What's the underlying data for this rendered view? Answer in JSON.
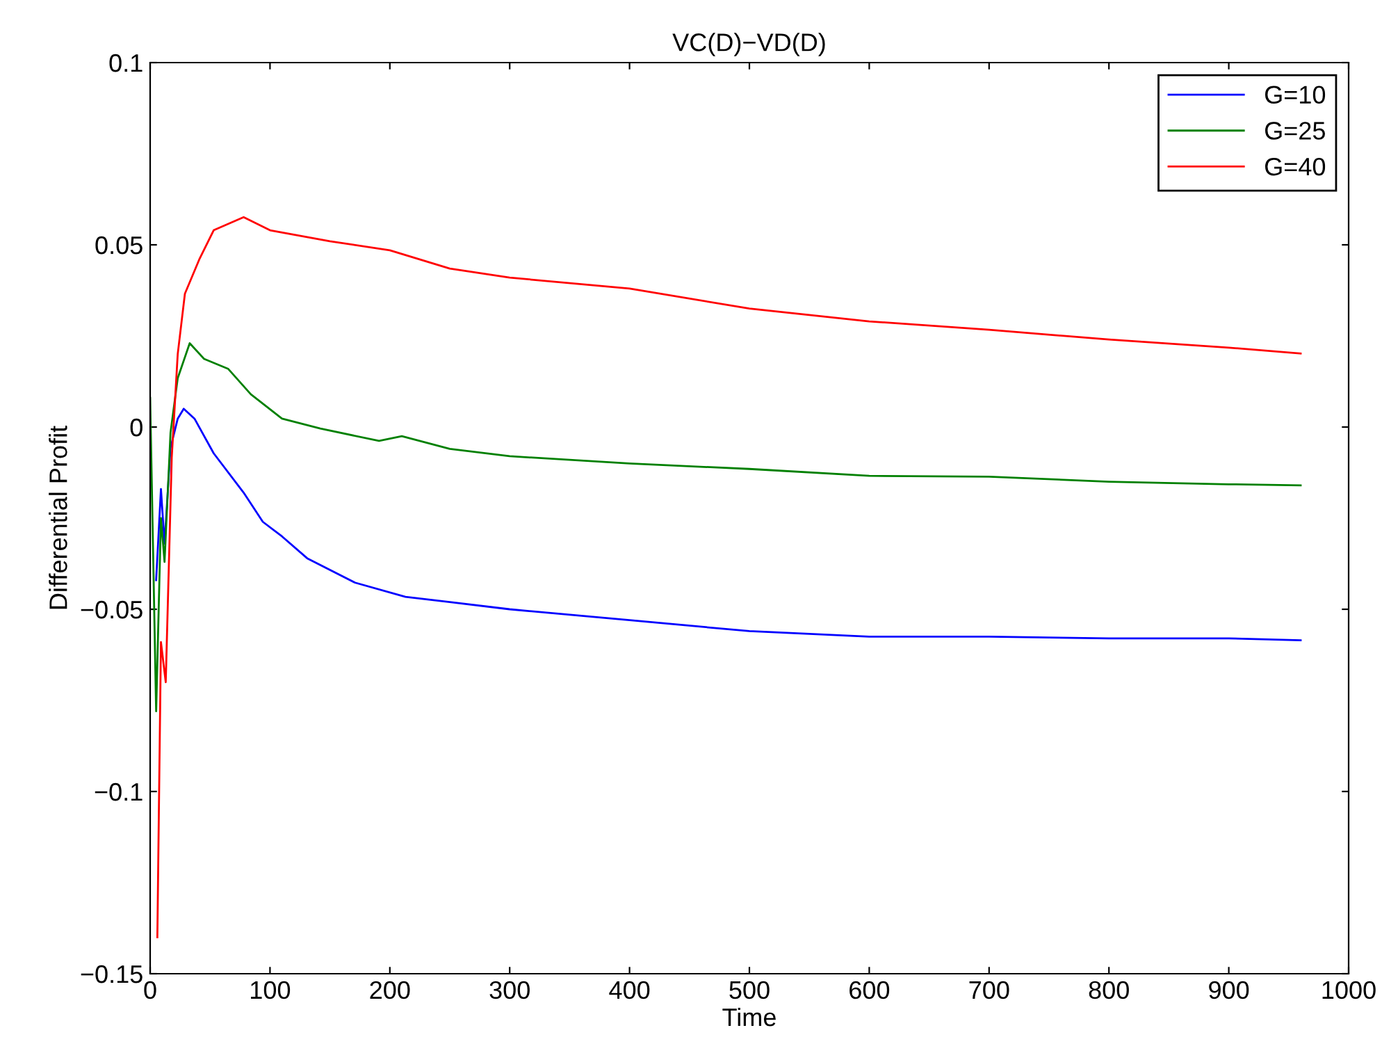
{
  "chart_data": {
    "type": "line",
    "title": "VC(D)−VD(D)",
    "xlabel": "Time",
    "ylabel": "Differential Profit",
    "xlim": [
      0,
      1000
    ],
    "ylim": [
      -0.15,
      0.1
    ],
    "xticks": [
      0,
      100,
      200,
      300,
      400,
      500,
      600,
      700,
      800,
      900,
      1000
    ],
    "yticks": [
      {
        "value": -0.15,
        "label": "−0.15"
      },
      {
        "value": -0.1,
        "label": "−0.1"
      },
      {
        "value": -0.05,
        "label": "−0.05"
      },
      0,
      0.05,
      0.1
    ],
    "grid": false,
    "legend": "top right",
    "marker": "none",
    "line_style": "solid",
    "series": [
      {
        "name": "G=10",
        "color": "#0000ff",
        "x": [
          5,
          9,
          12,
          17,
          23,
          28,
          37,
          53,
          78,
          94,
          110,
          131,
          171,
          213,
          250,
          300,
          400,
          500,
          600,
          700,
          800,
          900,
          960
        ],
        "values": [
          -0.042,
          -0.017,
          -0.032,
          -0.0057,
          0.0023,
          0.005,
          0.0023,
          -0.0072,
          -0.018,
          -0.026,
          -0.03,
          -0.036,
          -0.0427,
          -0.0466,
          -0.048,
          -0.05,
          -0.053,
          -0.056,
          -0.0575,
          -0.0575,
          -0.058,
          -0.058,
          -0.0585
        ]
      },
      {
        "name": "G=25",
        "color": "#008000",
        "x": [
          0,
          5,
          9,
          12,
          17,
          23,
          33,
          45,
          65,
          84,
          110,
          142,
          191,
          210,
          250,
          300,
          400,
          500,
          600,
          700,
          800,
          900,
          960
        ],
        "values": [
          0.008,
          -0.078,
          -0.025,
          -0.037,
          -0.0015,
          0.0134,
          0.023,
          0.0187,
          0.016,
          0.009,
          0.0023,
          -0.0004,
          -0.0038,
          -0.0025,
          -0.006,
          -0.008,
          -0.01,
          -0.0115,
          -0.0134,
          -0.0136,
          -0.015,
          -0.0157,
          -0.016
        ]
      },
      {
        "name": "G=40",
        "color": "#ff0000",
        "x": [
          6,
          9,
          13,
          18,
          23,
          29,
          41,
          53,
          78,
          100,
          150,
          200,
          250,
          300,
          400,
          500,
          600,
          700,
          800,
          900,
          960
        ],
        "values": [
          -0.14,
          -0.059,
          -0.07,
          -0.0084,
          0.02,
          0.0366,
          0.046,
          0.054,
          0.0576,
          0.054,
          0.051,
          0.0485,
          0.0435,
          0.041,
          0.038,
          0.0325,
          0.029,
          0.0267,
          0.024,
          0.0218,
          0.0202
        ]
      }
    ]
  }
}
